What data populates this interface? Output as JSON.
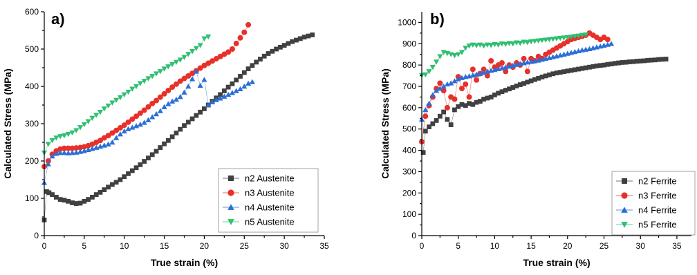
{
  "chart_data": [
    {
      "type": "scatter",
      "panel_label": "a)",
      "xlabel": "True strain (%)",
      "ylabel": "Calculated Stress (MPa)",
      "xlim": [
        0,
        35
      ],
      "ylim": [
        0,
        600
      ],
      "xticks": [
        0,
        5,
        10,
        15,
        20,
        25,
        30,
        35
      ],
      "yticks": [
        0,
        100,
        200,
        300,
        400,
        500,
        600
      ],
      "grid": false,
      "legend": "bottom-right",
      "series": [
        {
          "name": "n2 Austenite",
          "color": "#404040",
          "marker": "square",
          "x": [
            0,
            0.3,
            0.6,
            1,
            1.5,
            2,
            2.5,
            3,
            3.5,
            4,
            4.5,
            5,
            5.5,
            6,
            6.5,
            7,
            7.5,
            8,
            8.5,
            9,
            9.5,
            10,
            10.5,
            11,
            11.5,
            12,
            12.5,
            13,
            13.5,
            14,
            14.5,
            15,
            15.5,
            16,
            16.5,
            17,
            17.5,
            18,
            18.5,
            19,
            19.5,
            20,
            20.5,
            21,
            21.5,
            22,
            22.5,
            23,
            23.5,
            24,
            24.5,
            25,
            25.5,
            26,
            26.5,
            27,
            27.5,
            28,
            28.5,
            29,
            29.5,
            30,
            30.5,
            31,
            31.5,
            32,
            32.5,
            33,
            33.5
          ],
          "y": [
            42,
            118,
            115,
            110,
            103,
            97,
            95,
            92,
            88,
            86,
            87,
            92,
            97,
            103,
            110,
            116,
            123,
            130,
            137,
            143,
            150,
            158,
            166,
            174,
            182,
            190,
            199,
            208,
            217,
            226,
            236,
            246,
            255,
            265,
            275,
            285,
            295,
            304,
            313,
            322,
            331,
            340,
            350,
            360,
            369,
            378,
            388,
            398,
            407,
            417,
            427,
            437,
            447,
            456,
            465,
            473,
            481,
            488,
            494,
            500,
            505,
            510,
            515,
            520,
            524,
            528,
            532,
            535,
            538
          ]
        },
        {
          "name": "n3 Austenite",
          "color": "#e8302a",
          "marker": "circle",
          "x": [
            0,
            0.5,
            1,
            1.5,
            2,
            2.5,
            3,
            3.5,
            4,
            4.5,
            5,
            5.5,
            6,
            6.5,
            7,
            7.5,
            8,
            8.5,
            9,
            9.5,
            10,
            10.5,
            11,
            11.5,
            12,
            12.5,
            13,
            13.5,
            14,
            14.5,
            15,
            15.5,
            16,
            16.5,
            17,
            17.5,
            18,
            18.5,
            19,
            19.5,
            20,
            20.5,
            21,
            21.5,
            22,
            22.5,
            23,
            23.5,
            24,
            24.5,
            25,
            25.5
          ],
          "y": [
            185,
            200,
            218,
            227,
            232,
            234,
            234,
            234,
            235,
            236,
            238,
            241,
            245,
            250,
            255,
            262,
            268,
            275,
            282,
            289,
            296,
            304,
            312,
            320,
            328,
            336,
            345,
            354,
            362,
            371,
            380,
            389,
            398,
            406,
            414,
            421,
            428,
            435,
            442,
            449,
            456,
            462,
            468,
            474,
            480,
            486,
            492,
            500,
            515,
            530,
            545,
            565
          ]
        },
        {
          "name": "n4 Austenite",
          "color": "#2a6fd6",
          "marker": "triangle-up",
          "x": [
            0,
            0.5,
            1,
            1.5,
            2,
            2.5,
            3,
            3.5,
            4,
            4.5,
            5,
            5.5,
            6,
            6.5,
            7,
            7.5,
            8,
            8.5,
            9,
            9.5,
            10,
            10.5,
            11,
            11.5,
            12,
            12.5,
            13,
            13.5,
            14,
            14.5,
            15,
            15.5,
            16,
            16.5,
            17,
            17.5,
            18,
            18.5,
            19,
            19.5,
            20,
            20.5,
            21,
            21.5,
            22,
            22.5,
            23,
            23.5,
            24,
            24.5,
            25,
            25.5,
            26
          ],
          "y": [
            142,
            192,
            213,
            220,
            222,
            222,
            221,
            222,
            223,
            225,
            227,
            230,
            233,
            236,
            239,
            242,
            245,
            250,
            262,
            272,
            280,
            286,
            290,
            294,
            298,
            303,
            310,
            318,
            326,
            334,
            345,
            353,
            360,
            365,
            372,
            384,
            400,
            420,
            440,
            402,
            418,
            350,
            358,
            364,
            368,
            373,
            378,
            383,
            388,
            393,
            400,
            408,
            412
          ]
        },
        {
          "name": "n5 Austenite",
          "color": "#2fbf71",
          "marker": "triangle-down",
          "x": [
            0,
            0.5,
            1,
            1.5,
            2,
            2.5,
            3,
            3.5,
            4,
            4.5,
            5,
            5.5,
            6,
            6.5,
            7,
            7.5,
            8,
            8.5,
            9,
            9.5,
            10,
            10.5,
            11,
            11.5,
            12,
            12.5,
            13,
            13.5,
            14,
            14.5,
            15,
            15.5,
            16,
            16.5,
            17,
            17.5,
            18,
            18.5,
            19,
            19.5,
            20,
            20.5
          ],
          "y": [
            222,
            245,
            255,
            262,
            266,
            268,
            272,
            276,
            282,
            290,
            298,
            306,
            315,
            323,
            331,
            340,
            348,
            356,
            363,
            370,
            378,
            385,
            393,
            400,
            408,
            414,
            421,
            427,
            434,
            440,
            447,
            453,
            459,
            465,
            471,
            478,
            486,
            494,
            502,
            510,
            528,
            533
          ]
        }
      ]
    },
    {
      "type": "scatter",
      "panel_label": "b)",
      "xlabel": "True strain (%)",
      "ylabel": "Calculated Stress (MPa)",
      "xlim": [
        0,
        37
      ],
      "ylim": [
        0,
        1050
      ],
      "xticks": [
        0,
        5,
        10,
        15,
        20,
        25,
        30,
        35
      ],
      "yticks": [
        0,
        100,
        200,
        300,
        400,
        500,
        600,
        700,
        800,
        900,
        1000
      ],
      "grid": false,
      "legend": "bottom-right",
      "series": [
        {
          "name": "n2 Ferrite",
          "color": "#404040",
          "marker": "square",
          "x": [
            0.2,
            0.5,
            1,
            1.5,
            2,
            2.5,
            3,
            3.5,
            4,
            4.5,
            5,
            5.5,
            6,
            6.5,
            7,
            7.5,
            8,
            8.5,
            9,
            9.5,
            10,
            10.5,
            11,
            11.5,
            12,
            12.5,
            13,
            13.5,
            14,
            14.5,
            15,
            15.5,
            16,
            16.5,
            17,
            17.5,
            18,
            18.5,
            19,
            19.5,
            20,
            20.5,
            21,
            21.5,
            22,
            22.5,
            23,
            23.5,
            24,
            24.5,
            25,
            25.5,
            26,
            26.5,
            27,
            27.5,
            28,
            28.5,
            29,
            29.5,
            30,
            30.5,
            31,
            31.5,
            32,
            32.5,
            33,
            33.5
          ],
          "y": [
            390,
            490,
            510,
            525,
            540,
            560,
            580,
            545,
            520,
            590,
            605,
            615,
            610,
            620,
            615,
            625,
            630,
            640,
            645,
            650,
            660,
            668,
            675,
            682,
            688,
            695,
            702,
            708,
            714,
            720,
            726,
            732,
            738,
            744,
            749,
            754,
            759,
            763,
            766,
            769,
            772,
            775,
            778,
            781,
            784,
            787,
            790,
            793,
            796,
            798,
            800,
            803,
            805,
            808,
            810,
            812,
            813,
            815,
            816,
            818,
            819,
            820,
            822,
            823,
            824,
            826,
            827,
            828
          ]
        },
        {
          "name": "n3 Ferrite",
          "color": "#e8302a",
          "marker": "circle",
          "x": [
            0,
            0.5,
            1,
            1.5,
            2,
            2.5,
            3,
            3.5,
            4,
            4.5,
            5,
            5.5,
            6,
            6.5,
            7,
            7.5,
            8,
            8.5,
            9,
            9.5,
            10,
            10.5,
            11,
            11.5,
            12,
            12.5,
            13,
            13.5,
            14,
            14.5,
            15,
            15.5,
            16,
            16.5,
            17,
            17.5,
            18,
            18.5,
            19,
            19.5,
            20,
            20.5,
            21,
            21.5,
            22,
            22.5,
            23,
            23.5,
            24,
            24.5,
            25,
            25.5
          ],
          "y": [
            440,
            560,
            610,
            650,
            690,
            715,
            680,
            600,
            650,
            640,
            745,
            690,
            710,
            650,
            780,
            730,
            760,
            780,
            750,
            820,
            790,
            800,
            810,
            770,
            800,
            790,
            810,
            800,
            830,
            770,
            830,
            820,
            840,
            830,
            850,
            860,
            870,
            880,
            890,
            900,
            910,
            920,
            925,
            930,
            935,
            940,
            950,
            940,
            930,
            920,
            930,
            920
          ]
        },
        {
          "name": "n4 Ferrite",
          "color": "#2a6fd6",
          "marker": "triangle-up",
          "x": [
            0,
            0.5,
            1,
            1.5,
            2,
            2.5,
            3,
            3.5,
            4,
            4.5,
            5,
            5.5,
            6,
            6.5,
            7,
            7.5,
            8,
            8.5,
            9,
            9.5,
            10,
            10.5,
            11,
            11.5,
            12,
            12.5,
            13,
            13.5,
            14,
            14.5,
            15,
            15.5,
            16,
            16.5,
            17,
            17.5,
            18,
            18.5,
            19,
            19.5,
            20,
            20.5,
            21,
            21.5,
            22,
            22.5,
            23,
            23.5,
            24,
            24.5,
            25,
            25.5,
            26
          ],
          "y": [
            545,
            590,
            620,
            660,
            680,
            690,
            700,
            710,
            715,
            725,
            735,
            740,
            745,
            748,
            752,
            756,
            760,
            765,
            770,
            774,
            778,
            782,
            786,
            790,
            794,
            798,
            802,
            806,
            810,
            813,
            816,
            819,
            822,
            826,
            830,
            834,
            838,
            842,
            846,
            850,
            854,
            858,
            862,
            866,
            870,
            873,
            876,
            880,
            884,
            888,
            892,
            896,
            900
          ]
        },
        {
          "name": "n5 Ferrite",
          "color": "#2fbf71",
          "marker": "triangle-down",
          "x": [
            0,
            0.5,
            1,
            1.5,
            2,
            2.5,
            3,
            3.5,
            4,
            4.5,
            5,
            5.5,
            6,
            6.5,
            7,
            7.5,
            8,
            8.5,
            9,
            9.5,
            10,
            10.5,
            11,
            11.5,
            12,
            12.5,
            13,
            13.5,
            14,
            14.5,
            15,
            15.5,
            16,
            16.5,
            17,
            17.5,
            18,
            18.5,
            19,
            19.5,
            20,
            20.5,
            21,
            21.5,
            22,
            22.5
          ],
          "y": [
            752,
            755,
            770,
            790,
            815,
            840,
            860,
            855,
            850,
            845,
            850,
            860,
            880,
            890,
            895,
            892,
            895,
            890,
            895,
            893,
            897,
            895,
            900,
            898,
            902,
            900,
            905,
            903,
            908,
            906,
            910,
            912,
            914,
            916,
            918,
            920,
            922,
            924,
            926,
            928,
            930,
            932,
            935,
            937,
            940,
            942
          ]
        }
      ]
    }
  ]
}
